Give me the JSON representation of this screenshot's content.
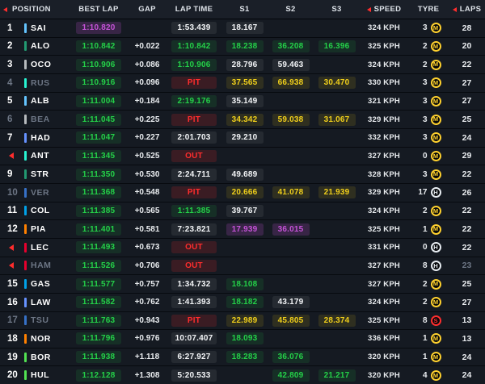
{
  "header": {
    "columns": [
      "POSITION",
      "BEST LAP",
      "GAP",
      "LAP TIME",
      "S1",
      "S2",
      "S3",
      "SPEED",
      "TYRE",
      "LAPS"
    ]
  },
  "colors": {
    "purple": "#c653d8",
    "green": "#24d048",
    "yellow": "#f0cf1b",
    "red": "#ff2d2d",
    "white": "#f2f4f6",
    "grey": "#6d7685"
  },
  "tyre_colors": {
    "M": "#ffd12e",
    "H": "#e8edf2",
    "S": "#ff2e2e"
  },
  "rows": [
    {
      "pos": "1",
      "arrow": false,
      "dim": false,
      "driver": "SAI",
      "team": "#64C4FF",
      "best": "1:10.820",
      "best_c": "purple",
      "gap": "",
      "lap": "1:53.439",
      "lap_c": "white",
      "s1": "18.167",
      "s1_c": "white",
      "s2": "",
      "s2_c": "",
      "s3": "",
      "s3_c": "",
      "speed": "324 KPH",
      "tyre_age": "3",
      "compound": "M",
      "laps": "28",
      "laps_dim": false
    },
    {
      "pos": "2",
      "arrow": false,
      "dim": false,
      "driver": "ALO",
      "team": "#229971",
      "best": "1:10.842",
      "best_c": "green",
      "gap": "+0.022",
      "lap": "1:10.842",
      "lap_c": "green",
      "s1": "18.238",
      "s1_c": "green",
      "s2": "36.208",
      "s2_c": "green",
      "s3": "16.396",
      "s3_c": "green",
      "speed": "325 KPH",
      "tyre_age": "2",
      "compound": "M",
      "laps": "20",
      "laps_dim": false
    },
    {
      "pos": "3",
      "arrow": false,
      "dim": false,
      "driver": "OCO",
      "team": "#B6BABD",
      "best": "1:10.906",
      "best_c": "green",
      "gap": "+0.086",
      "lap": "1:10.906",
      "lap_c": "green",
      "s1": "28.796",
      "s1_c": "white",
      "s2": "59.463",
      "s2_c": "white",
      "s3": "",
      "s3_c": "",
      "speed": "324 KPH",
      "tyre_age": "2",
      "compound": "M",
      "laps": "22",
      "laps_dim": false
    },
    {
      "pos": "4",
      "arrow": false,
      "dim": true,
      "driver": "RUS",
      "team": "#27F4D2",
      "best": "1:10.916",
      "best_c": "green",
      "gap": "+0.096",
      "lap": "PIT",
      "lap_c": "red",
      "s1": "37.565",
      "s1_c": "yellow",
      "s2": "66.938",
      "s2_c": "yellow",
      "s3": "30.470",
      "s3_c": "yellow",
      "speed": "330 KPH",
      "tyre_age": "3",
      "compound": "M",
      "laps": "27",
      "laps_dim": false
    },
    {
      "pos": "5",
      "arrow": false,
      "dim": false,
      "driver": "ALB",
      "team": "#64C4FF",
      "best": "1:11.004",
      "best_c": "green",
      "gap": "+0.184",
      "lap": "2:19.176",
      "lap_c": "green",
      "s1": "35.149",
      "s1_c": "white",
      "s2": "",
      "s2_c": "",
      "s3": "",
      "s3_c": "",
      "speed": "321 KPH",
      "tyre_age": "3",
      "compound": "M",
      "laps": "27",
      "laps_dim": false
    },
    {
      "pos": "6",
      "arrow": false,
      "dim": true,
      "driver": "BEA",
      "team": "#B6BABD",
      "best": "1:11.045",
      "best_c": "green",
      "gap": "+0.225",
      "lap": "PIT",
      "lap_c": "red",
      "s1": "34.342",
      "s1_c": "yellow",
      "s2": "59.038",
      "s2_c": "yellow",
      "s3": "31.067",
      "s3_c": "yellow",
      "speed": "329 KPH",
      "tyre_age": "3",
      "compound": "M",
      "laps": "25",
      "laps_dim": false
    },
    {
      "pos": "7",
      "arrow": false,
      "dim": false,
      "driver": "HAD",
      "team": "#6692FF",
      "best": "1:11.047",
      "best_c": "green",
      "gap": "+0.227",
      "lap": "2:01.703",
      "lap_c": "white",
      "s1": "29.210",
      "s1_c": "white",
      "s2": "",
      "s2_c": "",
      "s3": "",
      "s3_c": "",
      "speed": "332 KPH",
      "tyre_age": "3",
      "compound": "M",
      "laps": "24",
      "laps_dim": false
    },
    {
      "pos": "",
      "arrow": true,
      "dim": false,
      "driver": "ANT",
      "team": "#27F4D2",
      "best": "1:11.345",
      "best_c": "green",
      "gap": "+0.525",
      "lap": "OUT",
      "lap_c": "red",
      "s1": "",
      "s1_c": "",
      "s2": "",
      "s2_c": "",
      "s3": "",
      "s3_c": "",
      "speed": "327 KPH",
      "tyre_age": "0",
      "compound": "M",
      "laps": "29",
      "laps_dim": false
    },
    {
      "pos": "9",
      "arrow": false,
      "dim": false,
      "driver": "STR",
      "team": "#229971",
      "best": "1:11.350",
      "best_c": "green",
      "gap": "+0.530",
      "lap": "2:24.711",
      "lap_c": "white",
      "s1": "49.689",
      "s1_c": "white",
      "s2": "",
      "s2_c": "",
      "s3": "",
      "s3_c": "",
      "speed": "328 KPH",
      "tyre_age": "3",
      "compound": "M",
      "laps": "22",
      "laps_dim": false
    },
    {
      "pos": "10",
      "arrow": false,
      "dim": true,
      "driver": "VER",
      "team": "#3671C6",
      "best": "1:11.368",
      "best_c": "green",
      "gap": "+0.548",
      "lap": "PIT",
      "lap_c": "red",
      "s1": "20.666",
      "s1_c": "yellow",
      "s2": "41.078",
      "s2_c": "yellow",
      "s3": "21.939",
      "s3_c": "yellow",
      "speed": "329 KPH",
      "tyre_age": "17",
      "compound": "H",
      "laps": "26",
      "laps_dim": false
    },
    {
      "pos": "11",
      "arrow": false,
      "dim": false,
      "driver": "COL",
      "team": "#00A1E8",
      "best": "1:11.385",
      "best_c": "green",
      "gap": "+0.565",
      "lap": "1:11.385",
      "lap_c": "green",
      "s1": "39.767",
      "s1_c": "white",
      "s2": "",
      "s2_c": "",
      "s3": "",
      "s3_c": "",
      "speed": "324 KPH",
      "tyre_age": "2",
      "compound": "M",
      "laps": "22",
      "laps_dim": false
    },
    {
      "pos": "12",
      "arrow": false,
      "dim": false,
      "driver": "PIA",
      "team": "#FF8000",
      "best": "1:11.401",
      "best_c": "green",
      "gap": "+0.581",
      "lap": "7:23.821",
      "lap_c": "white",
      "s1": "17.939",
      "s1_c": "purple",
      "s2": "36.015",
      "s2_c": "purple",
      "s3": "",
      "s3_c": "",
      "speed": "325 KPH",
      "tyre_age": "1",
      "compound": "M",
      "laps": "22",
      "laps_dim": false
    },
    {
      "pos": "",
      "arrow": true,
      "dim": false,
      "driver": "LEC",
      "team": "#E8002D",
      "best": "1:11.493",
      "best_c": "green",
      "gap": "+0.673",
      "lap": "OUT",
      "lap_c": "red",
      "s1": "",
      "s1_c": "",
      "s2": "",
      "s2_c": "",
      "s3": "",
      "s3_c": "",
      "speed": "331 KPH",
      "tyre_age": "0",
      "compound": "H",
      "laps": "22",
      "laps_dim": false
    },
    {
      "pos": "",
      "arrow": true,
      "dim": true,
      "driver": "HAM",
      "team": "#E8002D",
      "best": "1:11.526",
      "best_c": "green",
      "gap": "+0.706",
      "lap": "OUT",
      "lap_c": "red",
      "s1": "",
      "s1_c": "",
      "s2": "",
      "s2_c": "",
      "s3": "",
      "s3_c": "",
      "speed": "327 KPH",
      "tyre_age": "8",
      "compound": "H",
      "laps": "23",
      "laps_dim": true
    },
    {
      "pos": "15",
      "arrow": false,
      "dim": false,
      "driver": "GAS",
      "team": "#00A1E8",
      "best": "1:11.577",
      "best_c": "green",
      "gap": "+0.757",
      "lap": "1:34.732",
      "lap_c": "white",
      "s1": "18.108",
      "s1_c": "green",
      "s2": "",
      "s2_c": "",
      "s3": "",
      "s3_c": "",
      "speed": "327 KPH",
      "tyre_age": "2",
      "compound": "M",
      "laps": "25",
      "laps_dim": false
    },
    {
      "pos": "16",
      "arrow": false,
      "dim": false,
      "driver": "LAW",
      "team": "#6692FF",
      "best": "1:11.582",
      "best_c": "green",
      "gap": "+0.762",
      "lap": "1:41.393",
      "lap_c": "white",
      "s1": "18.182",
      "s1_c": "green",
      "s2": "43.179",
      "s2_c": "white",
      "s3": "",
      "s3_c": "",
      "speed": "324 KPH",
      "tyre_age": "2",
      "compound": "M",
      "laps": "27",
      "laps_dim": false
    },
    {
      "pos": "17",
      "arrow": false,
      "dim": true,
      "driver": "TSU",
      "team": "#3671C6",
      "best": "1:11.763",
      "best_c": "green",
      "gap": "+0.943",
      "lap": "PIT",
      "lap_c": "red",
      "s1": "22.989",
      "s1_c": "yellow",
      "s2": "45.805",
      "s2_c": "yellow",
      "s3": "28.374",
      "s3_c": "yellow",
      "speed": "325 KPH",
      "tyre_age": "8",
      "compound": "S",
      "laps": "13",
      "laps_dim": false
    },
    {
      "pos": "18",
      "arrow": false,
      "dim": false,
      "driver": "NOR",
      "team": "#FF8000",
      "best": "1:11.796",
      "best_c": "green",
      "gap": "+0.976",
      "lap": "10:07.407",
      "lap_c": "white",
      "s1": "18.093",
      "s1_c": "green",
      "s2": "",
      "s2_c": "",
      "s3": "",
      "s3_c": "",
      "speed": "336 KPH",
      "tyre_age": "1",
      "compound": "M",
      "laps": "13",
      "laps_dim": false
    },
    {
      "pos": "19",
      "arrow": false,
      "dim": false,
      "driver": "BOR",
      "team": "#52E252",
      "best": "1:11.938",
      "best_c": "green",
      "gap": "+1.118",
      "lap": "6:27.927",
      "lap_c": "white",
      "s1": "18.283",
      "s1_c": "green",
      "s2": "36.076",
      "s2_c": "green",
      "s3": "",
      "s3_c": "",
      "speed": "320 KPH",
      "tyre_age": "1",
      "compound": "M",
      "laps": "24",
      "laps_dim": false
    },
    {
      "pos": "20",
      "arrow": false,
      "dim": false,
      "driver": "HUL",
      "team": "#52E252",
      "best": "1:12.128",
      "best_c": "green",
      "gap": "+1.308",
      "lap": "5:20.533",
      "lap_c": "white",
      "s1": "",
      "s1_c": "",
      "s2": "42.809",
      "s2_c": "green",
      "s3": "21.217",
      "s3_c": "green",
      "speed": "320 KPH",
      "tyre_age": "4",
      "compound": "M",
      "laps": "24",
      "laps_dim": false
    }
  ]
}
